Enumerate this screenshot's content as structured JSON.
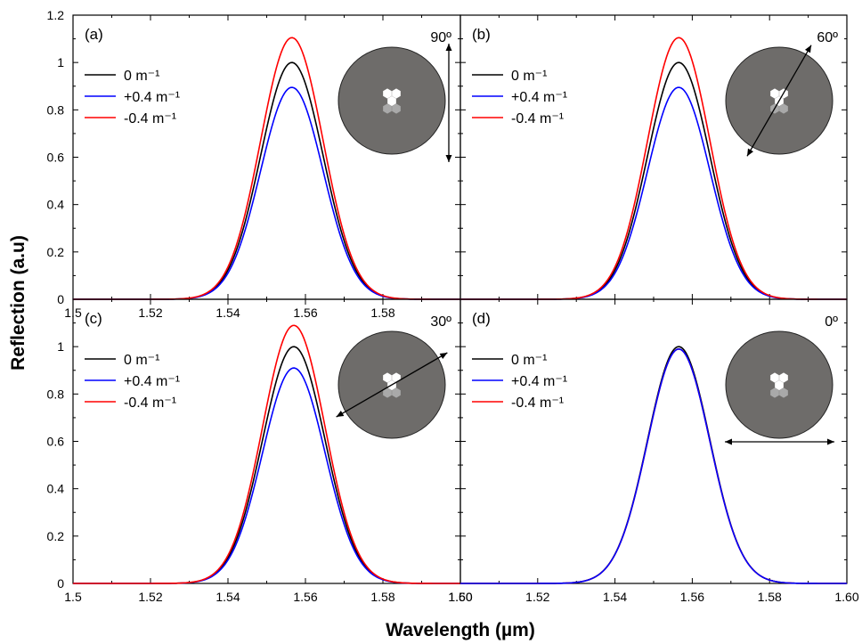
{
  "figure": {
    "ylabel": "Reflection (a.u)",
    "xlabel": "Wavelength (µm)"
  },
  "colors": {
    "zero": "#000000",
    "plus": "#0000ff",
    "minus": "#ff0000",
    "fiber": "#6e6c6a",
    "hole_upper": "#ffffff",
    "hole_lower": "#a9a9a9"
  },
  "chart_data": [
    {
      "type": "line",
      "panel": "(a)",
      "angle_label": "90º",
      "arrow_orientation_deg": 90,
      "xlim": [
        1.5,
        1.6
      ],
      "ylim": [
        0,
        1.2
      ],
      "xticks": [
        "1.5",
        "1.52",
        "1.54",
        "1.56",
        "1.58"
      ],
      "yticks": [
        "0",
        "0.2",
        "0.4",
        "0.6",
        "0.8",
        "1",
        "1.2"
      ],
      "legend_position": "upper-left",
      "center_um": 1.5565,
      "fwhm_um": 0.019,
      "series": [
        {
          "name": "0 m⁻¹",
          "color_key": "zero",
          "peak": 1.0
        },
        {
          "name": "+0.4 m⁻¹",
          "color_key": "plus",
          "peak": 0.895
        },
        {
          "name": "-0.4 m⁻¹",
          "color_key": "minus",
          "peak": 1.105
        }
      ]
    },
    {
      "type": "line",
      "panel": "(b)",
      "angle_label": "60º",
      "arrow_orientation_deg": 60,
      "xlim": [
        1.5,
        1.6
      ],
      "ylim": [
        0,
        1.2
      ],
      "xticks": [],
      "yticks": [],
      "legend_position": "upper-left",
      "center_um": 1.5565,
      "fwhm_um": 0.019,
      "series": [
        {
          "name": "0 m⁻¹",
          "color_key": "zero",
          "peak": 1.0
        },
        {
          "name": "+0.4 m⁻¹",
          "color_key": "plus",
          "peak": 0.895
        },
        {
          "name": "-0.4 m⁻¹",
          "color_key": "minus",
          "peak": 1.105
        }
      ]
    },
    {
      "type": "line",
      "panel": "(c)",
      "angle_label": "30º",
      "arrow_orientation_deg": 30,
      "xlim": [
        1.5,
        1.6
      ],
      "ylim": [
        0,
        1.2
      ],
      "xticks": [
        "1.5",
        "1.52",
        "1.54",
        "1.56",
        "1.58",
        "1.60"
      ],
      "yticks": [
        "0",
        "0.2",
        "0.4",
        "0.6",
        "0.8",
        "1"
      ],
      "legend_position": "upper-left",
      "center_um": 1.557,
      "fwhm_um": 0.019,
      "series": [
        {
          "name": "0 m⁻¹",
          "color_key": "zero",
          "peak": 1.0
        },
        {
          "name": "+0.4 m⁻¹",
          "color_key": "plus",
          "peak": 0.91
        },
        {
          "name": "-0.4 m⁻¹",
          "color_key": "minus",
          "peak": 1.09
        }
      ]
    },
    {
      "type": "line",
      "panel": "(d)",
      "angle_label": "0º",
      "arrow_orientation_deg": 0,
      "xlim": [
        1.5,
        1.6
      ],
      "ylim": [
        0,
        1.2
      ],
      "xticks": [
        "1.50",
        "1.52",
        "1.54",
        "1.56",
        "1.58",
        "1.60"
      ],
      "yticks": [],
      "legend_position": "upper-left",
      "center_um": 1.5565,
      "fwhm_um": 0.019,
      "series": [
        {
          "name": "0 m⁻¹",
          "color_key": "zero",
          "peak": 1.0
        },
        {
          "name": "-0.4 m⁻¹",
          "color_key": "minus",
          "peak": 0.99
        },
        {
          "name": "+0.4 m⁻¹",
          "color_key": "plus",
          "peak": 0.99
        }
      ]
    }
  ]
}
